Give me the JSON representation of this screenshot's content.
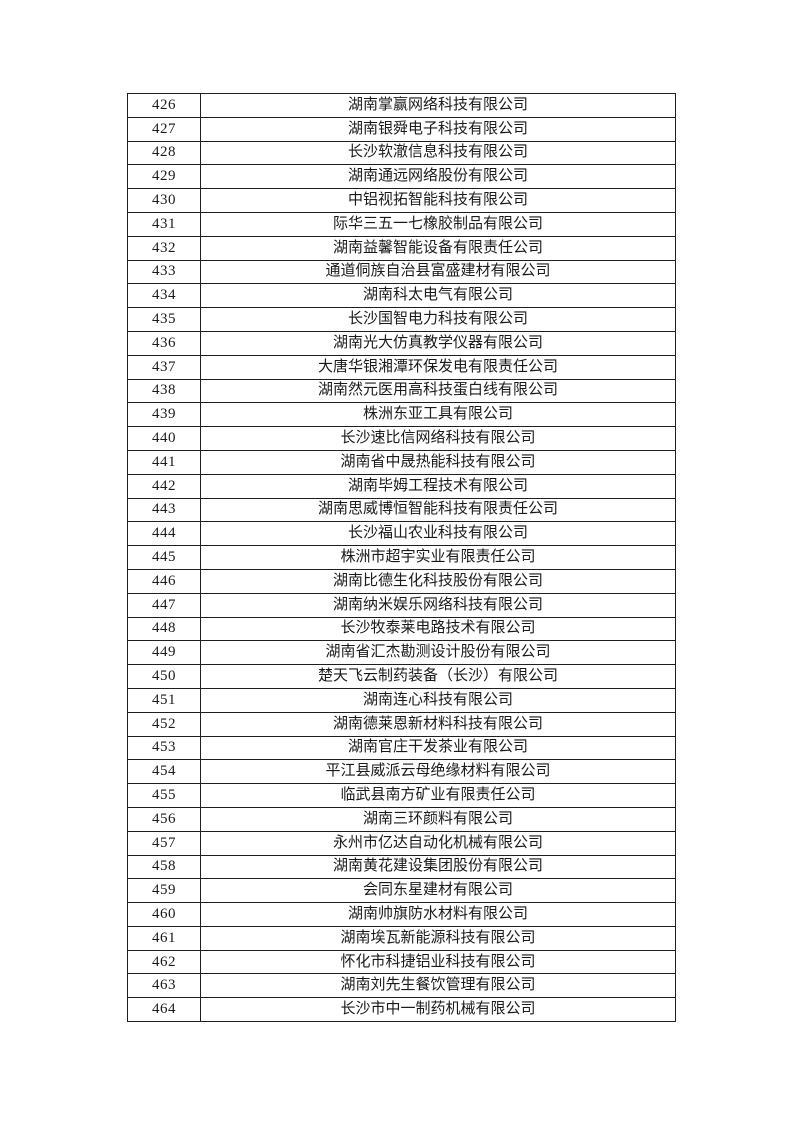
{
  "page": {
    "background": "#ffffff"
  },
  "colors": {
    "border": "#1f1f1f",
    "text": "#1a1a1a"
  },
  "table": {
    "rows": [
      {
        "no": "426",
        "company": "湖南掌赢网络科技有限公司"
      },
      {
        "no": "427",
        "company": "湖南银舜电子科技有限公司"
      },
      {
        "no": "428",
        "company": "长沙软澈信息科技有限公司"
      },
      {
        "no": "429",
        "company": "湖南通远网络股份有限公司"
      },
      {
        "no": "430",
        "company": "中铝视拓智能科技有限公司"
      },
      {
        "no": "431",
        "company": "际华三五一七橡胶制品有限公司"
      },
      {
        "no": "432",
        "company": "湖南益馨智能设备有限责任公司"
      },
      {
        "no": "433",
        "company": "通道侗族自治县富盛建材有限公司"
      },
      {
        "no": "434",
        "company": "湖南科太电气有限公司"
      },
      {
        "no": "435",
        "company": "长沙国智电力科技有限公司"
      },
      {
        "no": "436",
        "company": "湖南光大仿真教学仪器有限公司"
      },
      {
        "no": "437",
        "company": "大唐华银湘潭环保发电有限责任公司"
      },
      {
        "no": "438",
        "company": "湖南然元医用高科技蛋白线有限公司"
      },
      {
        "no": "439",
        "company": "株洲东亚工具有限公司"
      },
      {
        "no": "440",
        "company": "长沙速比信网络科技有限公司"
      },
      {
        "no": "441",
        "company": "湖南省中晟热能科技有限公司"
      },
      {
        "no": "442",
        "company": "湖南毕姆工程技术有限公司"
      },
      {
        "no": "443",
        "company": "湖南思威博恒智能科技有限责任公司"
      },
      {
        "no": "444",
        "company": "长沙福山农业科技有限公司"
      },
      {
        "no": "445",
        "company": "株洲市超宇实业有限责任公司"
      },
      {
        "no": "446",
        "company": "湖南比德生化科技股份有限公司"
      },
      {
        "no": "447",
        "company": "湖南纳米娱乐网络科技有限公司"
      },
      {
        "no": "448",
        "company": "长沙牧泰莱电路技术有限公司"
      },
      {
        "no": "449",
        "company": "湖南省汇杰勘测设计股份有限公司"
      },
      {
        "no": "450",
        "company": "楚天飞云制药装备（长沙）有限公司"
      },
      {
        "no": "451",
        "company": "湖南连心科技有限公司"
      },
      {
        "no": "452",
        "company": "湖南德莱恩新材料科技有限公司"
      },
      {
        "no": "453",
        "company": "湖南官庄干发茶业有限公司"
      },
      {
        "no": "454",
        "company": "平江县威派云母绝缘材料有限公司"
      },
      {
        "no": "455",
        "company": "临武县南方矿业有限责任公司"
      },
      {
        "no": "456",
        "company": "湖南三环颜料有限公司"
      },
      {
        "no": "457",
        "company": "永州市亿达自动化机械有限公司"
      },
      {
        "no": "458",
        "company": "湖南黄花建设集团股份有限公司"
      },
      {
        "no": "459",
        "company": "会同东星建材有限公司"
      },
      {
        "no": "460",
        "company": "湖南帅旗防水材料有限公司"
      },
      {
        "no": "461",
        "company": "湖南埃瓦新能源科技有限公司"
      },
      {
        "no": "462",
        "company": "怀化市科捷铝业科技有限公司"
      },
      {
        "no": "463",
        "company": "湖南刘先生餐饮管理有限公司"
      },
      {
        "no": "464",
        "company": "长沙市中一制药机械有限公司"
      }
    ]
  }
}
